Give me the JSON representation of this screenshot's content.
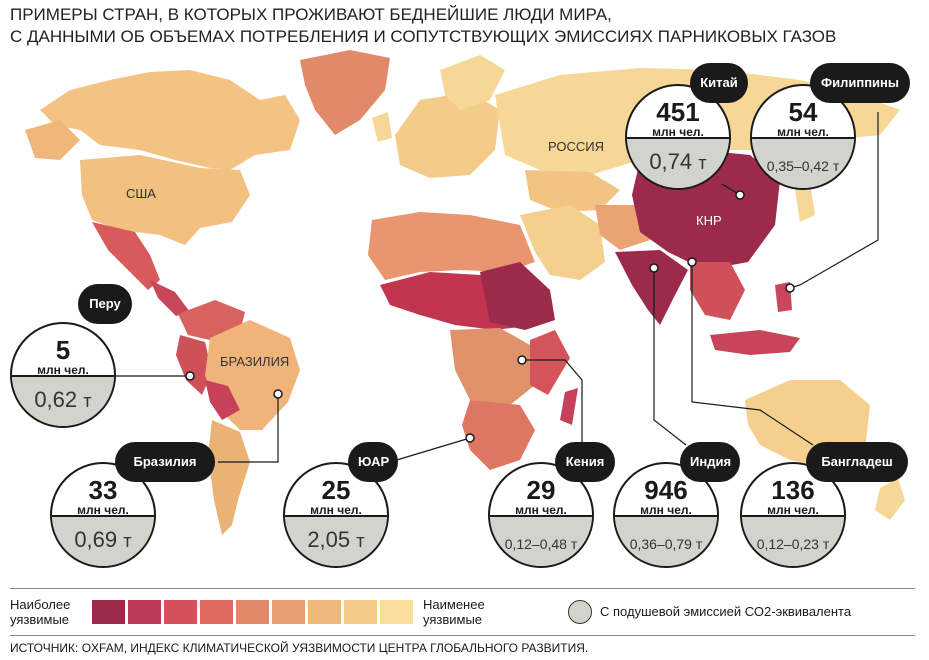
{
  "title": {
    "line1": "ПРИМЕРЫ СТРАН, В КОТОРЫХ ПРОЖИВАЮТ БЕДНЕЙШИЕ ЛЮДИ МИРА,",
    "line2": "С ДАННЫМИ ОБ ОБЪЕМАХ ПОТРЕБЛЕНИЯ И СОПУТСТВУЮЩИХ ЭМИССИЯХ ПАРНИКОВЫХ ГАЗОВ"
  },
  "map_labels": {
    "usa": "США",
    "russia": "РОССИЯ",
    "brazil": "БРАЗИЛИЯ",
    "china": "КНР"
  },
  "countries": [
    {
      "id": "china",
      "name": "Китай",
      "population": "451",
      "unit": "млн чел.",
      "emission": "0,74",
      "emission_unit": "т"
    },
    {
      "id": "philippines",
      "name": "Филиппины",
      "population": "54",
      "unit": "млн чел.",
      "emission": "0,35–0,42",
      "emission_unit": "т"
    },
    {
      "id": "peru",
      "name": "Перу",
      "population": "5",
      "unit": "млн чел.",
      "emission": "0,62",
      "emission_unit": "т"
    },
    {
      "id": "brazil",
      "name": "Бразилия",
      "population": "33",
      "unit": "млн чел.",
      "emission": "0,69",
      "emission_unit": "т"
    },
    {
      "id": "sa",
      "name": "ЮАР",
      "population": "25",
      "unit": "млн чел.",
      "emission": "2,05",
      "emission_unit": "т"
    },
    {
      "id": "kenya",
      "name": "Кения",
      "population": "29",
      "unit": "млн чел.",
      "emission": "0,12–0,48",
      "emission_unit": "т"
    },
    {
      "id": "india",
      "name": "Индия",
      "population": "946",
      "unit": "млн чел.",
      "emission": "0,36–0,79",
      "emission_unit": "т"
    },
    {
      "id": "bangladesh",
      "name": "Бангладеш",
      "population": "136",
      "unit": "млн чел.",
      "emission": "0,12–0,23",
      "emission_unit": "т"
    }
  ],
  "legend": {
    "most_vulnerable": "Наиболее уязвимые",
    "least_vulnerable": "Наименее уязвимые",
    "scale_colors": [
      "#9b2a4b",
      "#bb3a55",
      "#d4505a",
      "#dd6a5f",
      "#e08868",
      "#e79f73",
      "#eeb77c",
      "#f3cb89",
      "#f8de9a"
    ],
    "circle_label": "С подушевой эмиссией СО2-эквивалента"
  },
  "source": "ИСТОЧНИК: OXFAM, ИНДЕКС КЛИМАТИЧЕСКОЙ УЯЗВИМОСТИ ЦЕНТРА ГЛОБАЛЬНОГО РАЗВИТИЯ."
}
